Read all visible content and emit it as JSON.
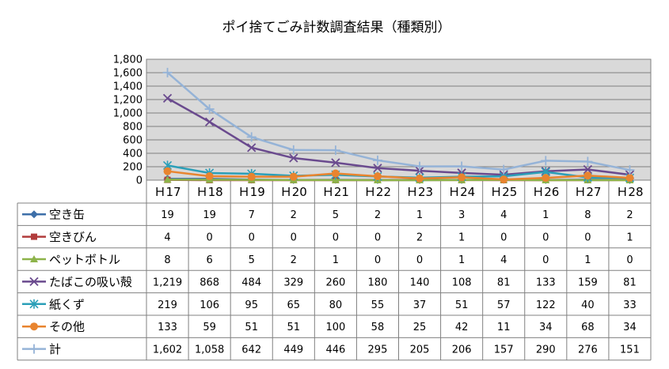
{
  "chart_data": {
    "type": "line",
    "title": "ポイ捨てごみ計数調査結果（種類別）",
    "categories": [
      "Ｈ17",
      "Ｈ18",
      "Ｈ19",
      "Ｈ20",
      "Ｈ21",
      "Ｈ22",
      "Ｈ23",
      "Ｈ24",
      "Ｈ25",
      "Ｈ26",
      "Ｈ27",
      "Ｈ28"
    ],
    "ylim": [
      0,
      1800
    ],
    "yticks": [
      "0",
      "200",
      "400",
      "600",
      "800",
      "1,000",
      "1,200",
      "1,400",
      "1,600",
      "1,800"
    ],
    "grid": true,
    "legend": "data-table-left",
    "series": [
      {
        "name": "空き缶",
        "color": "#3d6fa8",
        "marker": "diamond",
        "values": [
          19,
          19,
          7,
          2,
          5,
          2,
          1,
          3,
          4,
          1,
          8,
          2
        ],
        "labels": [
          "19",
          "19",
          "7",
          "2",
          "5",
          "2",
          "1",
          "3",
          "4",
          "1",
          "8",
          "2"
        ]
      },
      {
        "name": "空きびん",
        "color": "#b13c3c",
        "marker": "square",
        "values": [
          4,
          0,
          0,
          0,
          0,
          0,
          2,
          1,
          0,
          0,
          0,
          1
        ],
        "labels": [
          "4",
          "0",
          "0",
          "0",
          "0",
          "0",
          "2",
          "1",
          "0",
          "0",
          "0",
          "1"
        ]
      },
      {
        "name": "ペットボトル",
        "color": "#8db34a",
        "marker": "triangle",
        "values": [
          8,
          6,
          5,
          2,
          1,
          0,
          0,
          1,
          4,
          0,
          1,
          0
        ],
        "labels": [
          "8",
          "6",
          "5",
          "2",
          "1",
          "0",
          "0",
          "1",
          "4",
          "0",
          "1",
          "0"
        ]
      },
      {
        "name": "たばこの吸い殻",
        "color": "#6a4a8e",
        "marker": "x",
        "values": [
          1219,
          868,
          484,
          329,
          260,
          180,
          140,
          108,
          81,
          133,
          159,
          81
        ],
        "labels": [
          "1,219",
          "868",
          "484",
          "329",
          "260",
          "180",
          "140",
          "108",
          "81",
          "133",
          "159",
          "81"
        ]
      },
      {
        "name": "紙くず",
        "color": "#2b9fb8",
        "marker": "star",
        "values": [
          219,
          106,
          95,
          65,
          80,
          55,
          37,
          51,
          57,
          122,
          40,
          33
        ],
        "labels": [
          "219",
          "106",
          "95",
          "65",
          "80",
          "55",
          "37",
          "51",
          "57",
          "122",
          "40",
          "33"
        ]
      },
      {
        "name": "その他",
        "color": "#e8842f",
        "marker": "circle",
        "values": [
          133,
          59,
          51,
          51,
          100,
          58,
          25,
          42,
          11,
          34,
          68,
          34
        ],
        "labels": [
          "133",
          "59",
          "51",
          "51",
          "100",
          "58",
          "25",
          "42",
          "11",
          "34",
          "68",
          "34"
        ]
      },
      {
        "name": "計",
        "color": "#95b3d7",
        "marker": "plus",
        "values": [
          1602,
          1058,
          642,
          449,
          446,
          295,
          205,
          206,
          157,
          290,
          276,
          151
        ],
        "labels": [
          "1,602",
          "1,058",
          "642",
          "449",
          "446",
          "295",
          "205",
          "206",
          "157",
          "290",
          "276",
          "151"
        ]
      }
    ]
  }
}
